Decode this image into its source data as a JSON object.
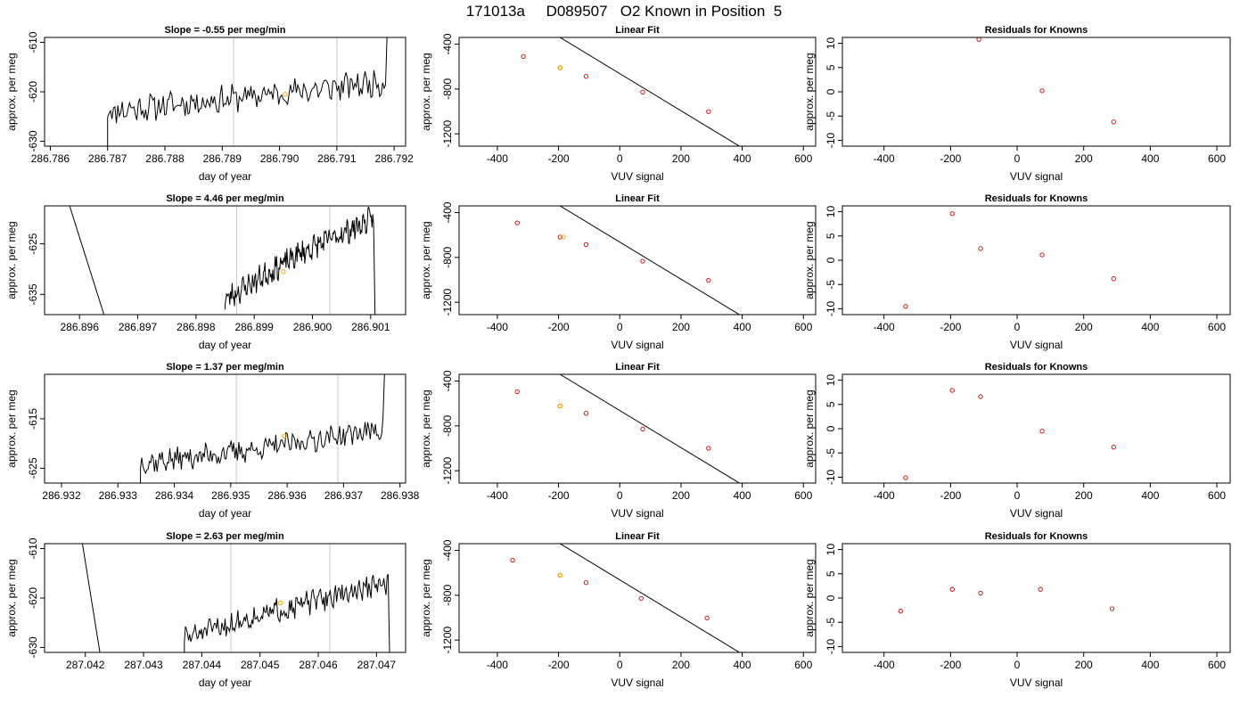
{
  "page": {
    "title": "171013a     D089507   O2 Known in Position  5"
  },
  "colors": {
    "line": "#000000",
    "point": "#cc0000",
    "highlight": "#ffa500",
    "vline": "#c8c8c8"
  },
  "chart_data": [
    {
      "type": "line",
      "row": 0,
      "col": 0,
      "title": "Slope =  -0.55  per meg/min",
      "xlabel": "day of year",
      "ylabel": "approx. per meg",
      "xlim": [
        286.7859,
        286.7922
      ],
      "ylim": [
        -631,
        -609
      ],
      "y_reversed": true,
      "xticks": [
        286.786,
        286.787,
        286.788,
        286.789,
        286.79,
        286.791,
        286.792
      ],
      "xtick_labels": [
        "286.786",
        "286.787",
        "286.788",
        "286.789",
        "286.790",
        "286.791",
        "286.792"
      ],
      "yticks": [
        -610,
        -620,
        -630
      ],
      "ytick_labels": [
        "-610",
        "-620",
        "-630"
      ],
      "vlines": [
        286.7892,
        286.791
      ],
      "highlight": {
        "x": 286.7901,
        "y": -620.5
      },
      "series": [
        {
          "x_start": 286.787,
          "x_end": 286.79185,
          "start_y": -631,
          "base": -624,
          "mid": -621,
          "end": -618,
          "noise": 2.3,
          "seed": 11,
          "tail_y": -609
        }
      ]
    },
    {
      "type": "scatter",
      "row": 0,
      "col": 1,
      "title": "Linear Fit",
      "xlabel": "VUV signal",
      "ylabel": "approx. per meg",
      "xlim": [
        -525,
        640
      ],
      "ylim": [
        -1310,
        -340
      ],
      "y_reversed": true,
      "xticks": [
        -400,
        -200,
        0,
        200,
        400,
        600
      ],
      "xtick_labels": [
        "-400",
        "-200",
        "0",
        "200",
        "400",
        "600"
      ],
      "yticks": [
        -400,
        -800,
        -1200
      ],
      "ytick_labels": [
        "-400",
        "-800",
        "-1200"
      ],
      "fit": {
        "slope": -1.655,
        "intercept": -663,
        "x_range": [
          -500,
          610
        ]
      },
      "points": {
        "x": [
          -315,
          -195,
          -110,
          75,
          290
        ],
        "y": [
          -510,
          -610,
          -688,
          -828,
          -1002
        ]
      },
      "highlight": {
        "x": -195,
        "y": -610
      }
    },
    {
      "type": "scatter",
      "row": 0,
      "col": 2,
      "title": "Residuals for Knowns",
      "xlabel": "VUV signal",
      "ylabel": "approx. per meg",
      "xlim": [
        -525,
        640
      ],
      "ylim": [
        -11.2,
        11.2
      ],
      "y_reversed": false,
      "xticks": [
        -400,
        -200,
        0,
        200,
        400,
        600
      ],
      "xtick_labels": [
        "-400",
        "-200",
        "0",
        "200",
        "400",
        "600"
      ],
      "yticks": [
        10,
        5,
        0,
        -5,
        -10
      ],
      "ytick_labels": [
        "10",
        "5",
        "0",
        "-5",
        "-10"
      ],
      "points": {
        "x": [
          -115,
          75,
          290
        ],
        "y": [
          10.8,
          0.2,
          -6.2
        ]
      }
    },
    {
      "type": "line",
      "row": 1,
      "col": 0,
      "title": "Slope =  4.46  per meg/min",
      "xlabel": "day of year",
      "ylabel": "approx. per meg",
      "xlim": [
        286.8954,
        286.9016
      ],
      "ylim": [
        -639,
        -617.5
      ],
      "y_reversed": true,
      "xticks": [
        286.896,
        286.897,
        286.898,
        286.899,
        286.9,
        286.901
      ],
      "xtick_labels": [
        "286.896",
        "286.897",
        "286.898",
        "286.899",
        "286.900",
        "286.901"
      ],
      "yticks": [
        -625,
        -635
      ],
      "ytick_labels": [
        "-625",
        "-635"
      ],
      "vlines": [
        286.8987,
        286.9003
      ],
      "highlight": {
        "x": 286.8995,
        "y": -630.5
      },
      "drop": {
        "x": [
          286.89583,
          286.89642
        ],
        "y": [
          -617.5,
          -639
        ]
      },
      "series": [
        {
          "x_start": 286.8985,
          "x_end": 286.90105,
          "start_y": -638,
          "base": -636,
          "mid": -627,
          "end": -620,
          "noise": 2.1,
          "seed": 23,
          "tail_y": -639
        }
      ]
    },
    {
      "type": "scatter",
      "row": 1,
      "col": 1,
      "title": "Linear Fit",
      "xlabel": "VUV signal",
      "ylabel": "approx. per meg",
      "xlim": [
        -525,
        640
      ],
      "ylim": [
        -1310,
        -340
      ],
      "y_reversed": true,
      "xticks": [
        -400,
        -200,
        0,
        200,
        400,
        600
      ],
      "xtick_labels": [
        "-400",
        "-200",
        "0",
        "200",
        "400",
        "600"
      ],
      "yticks": [
        -400,
        -800,
        -1200
      ],
      "ytick_labels": [
        "-400",
        "-800",
        "-1200"
      ],
      "fit": {
        "slope": -1.655,
        "intercept": -663,
        "x_range": [
          -500,
          610
        ]
      },
      "points": {
        "x": [
          -335,
          -195,
          -110,
          75,
          290
        ],
        "y": [
          -492,
          -618,
          -685,
          -833,
          -1005
        ]
      },
      "highlight": {
        "x": -185,
        "y": -618
      }
    },
    {
      "type": "scatter",
      "row": 1,
      "col": 2,
      "title": "Residuals for Knowns",
      "xlabel": "VUV signal",
      "ylabel": "approx. per meg",
      "xlim": [
        -525,
        640
      ],
      "ylim": [
        -11.2,
        11.2
      ],
      "y_reversed": false,
      "xticks": [
        -400,
        -200,
        0,
        200,
        400,
        600
      ],
      "xtick_labels": [
        "-400",
        "-200",
        "0",
        "200",
        "400",
        "600"
      ],
      "yticks": [
        10,
        5,
        0,
        -5,
        -10
      ],
      "ytick_labels": [
        "10",
        "5",
        "0",
        "-5",
        "-10"
      ],
      "points": {
        "x": [
          -335,
          -195,
          -110,
          75,
          290
        ],
        "y": [
          -9.5,
          9.6,
          2.4,
          1.1,
          -3.8
        ]
      }
    },
    {
      "type": "line",
      "row": 2,
      "col": 0,
      "title": "Slope =  1.37  per meg/min",
      "xlabel": "day of year",
      "ylabel": "approx. per meg",
      "xlim": [
        286.9317,
        286.9381
      ],
      "ylim": [
        -628,
        -606
      ],
      "y_reversed": true,
      "xticks": [
        286.932,
        286.933,
        286.934,
        286.935,
        286.936,
        286.937,
        286.938
      ],
      "xtick_labels": [
        "286.932",
        "286.933",
        "286.934",
        "286.935",
        "286.936",
        "286.937",
        "286.938"
      ],
      "yticks": [
        -615,
        -625
      ],
      "ytick_labels": [
        "-615",
        "-625"
      ],
      "vlines": [
        286.9351,
        286.9369
      ],
      "highlight": {
        "x": 286.93595,
        "y": -618.5
      },
      "series": [
        {
          "x_start": 286.9334,
          "x_end": 286.9377,
          "start_y": -628,
          "base": -624,
          "mid": -621,
          "end": -617,
          "noise": 2.0,
          "seed": 37,
          "tail_y": -606
        }
      ]
    },
    {
      "type": "scatter",
      "row": 2,
      "col": 1,
      "title": "Linear Fit",
      "xlabel": "VUV signal",
      "ylabel": "approx. per meg",
      "xlim": [
        -525,
        640
      ],
      "ylim": [
        -1310,
        -340
      ],
      "y_reversed": true,
      "xticks": [
        -400,
        -200,
        0,
        200,
        400,
        600
      ],
      "xtick_labels": [
        "-400",
        "-200",
        "0",
        "200",
        "400",
        "600"
      ],
      "yticks": [
        -400,
        -800,
        -1200
      ],
      "ytick_labels": [
        "-400",
        "-800",
        "-1200"
      ],
      "fit": {
        "slope": -1.655,
        "intercept": -663,
        "x_range": [
          -500,
          610
        ]
      },
      "points": {
        "x": [
          -335,
          -195,
          -110,
          75,
          290
        ],
        "y": [
          -495,
          -622,
          -688,
          -828,
          -1000
        ]
      },
      "highlight": {
        "x": -195,
        "y": -622
      }
    },
    {
      "type": "scatter",
      "row": 2,
      "col": 2,
      "title": "Residuals for Knowns",
      "xlabel": "VUV signal",
      "ylabel": "approx. per meg",
      "xlim": [
        -525,
        640
      ],
      "ylim": [
        -11.2,
        11.2
      ],
      "y_reversed": false,
      "xticks": [
        -400,
        -200,
        0,
        200,
        400,
        600
      ],
      "xtick_labels": [
        "-400",
        "-200",
        "0",
        "200",
        "400",
        "600"
      ],
      "yticks": [
        10,
        5,
        0,
        -5,
        -10
      ],
      "ytick_labels": [
        "10",
        "5",
        "0",
        "-5",
        "-10"
      ],
      "points": {
        "x": [
          -335,
          -195,
          -110,
          75,
          290
        ],
        "y": [
          -10.1,
          7.9,
          6.6,
          -0.5,
          -3.8
        ]
      }
    },
    {
      "type": "line",
      "row": 3,
      "col": 0,
      "title": "Slope =  2.63  per meg/min",
      "xlabel": "day of year",
      "ylabel": "approx. per meg",
      "xlim": [
        287.0413,
        287.0475
      ],
      "ylim": [
        -631,
        -609
      ],
      "y_reversed": true,
      "xticks": [
        287.042,
        287.043,
        287.044,
        287.045,
        287.046,
        287.047
      ],
      "xtick_labels": [
        "287.042",
        "287.043",
        "287.044",
        "287.045",
        "287.046",
        "287.047"
      ],
      "yticks": [
        -610,
        -620,
        -630
      ],
      "ytick_labels": [
        "-610",
        "-620",
        "-630"
      ],
      "vlines": [
        287.0445,
        287.0462
      ],
      "highlight": {
        "x": 287.04535,
        "y": -621
      },
      "drop": {
        "x": [
          287.04195,
          287.04225
        ],
        "y": [
          -609,
          -631
        ]
      },
      "series": [
        {
          "x_start": 287.0437,
          "x_end": 287.0472,
          "start_y": -631,
          "base": -628,
          "mid": -622,
          "end": -617,
          "noise": 2.0,
          "seed": 51,
          "tail_y": -631
        }
      ]
    },
    {
      "type": "scatter",
      "row": 3,
      "col": 1,
      "title": "Linear Fit",
      "xlabel": "VUV signal",
      "ylabel": "approx. per meg",
      "xlim": [
        -525,
        640
      ],
      "ylim": [
        -1310,
        -340
      ],
      "y_reversed": true,
      "xticks": [
        -400,
        -200,
        0,
        200,
        400,
        600
      ],
      "xtick_labels": [
        "-400",
        "-200",
        "0",
        "200",
        "400",
        "600"
      ],
      "yticks": [
        -400,
        -800,
        -1200
      ],
      "ytick_labels": [
        "-400",
        "-800",
        "-1200"
      ],
      "fit": {
        "slope": -1.655,
        "intercept": -663,
        "x_range": [
          -500,
          610
        ]
      },
      "points": {
        "x": [
          -350,
          -195,
          -110,
          70,
          285
        ],
        "y": [
          -488,
          -622,
          -688,
          -828,
          -1003
        ]
      },
      "highlight": {
        "x": -195,
        "y": -622
      }
    },
    {
      "type": "scatter",
      "row": 3,
      "col": 2,
      "title": "Residuals for Knowns",
      "xlabel": "VUV signal",
      "ylabel": "approx. per meg",
      "xlim": [
        -525,
        640
      ],
      "ylim": [
        -11.2,
        11.2
      ],
      "y_reversed": false,
      "xticks": [
        -400,
        -200,
        0,
        200,
        400,
        600
      ],
      "xtick_labels": [
        "-400",
        "-200",
        "0",
        "200",
        "400",
        "600"
      ],
      "yticks": [
        10,
        5,
        0,
        -5,
        -10
      ],
      "ytick_labels": [
        "10",
        "5",
        "0",
        "-5",
        "-10"
      ],
      "points": {
        "x": [
          -350,
          -195,
          -110,
          70,
          285
        ],
        "y": [
          -2.7,
          1.8,
          1.0,
          1.8,
          -2.2
        ]
      }
    }
  ]
}
